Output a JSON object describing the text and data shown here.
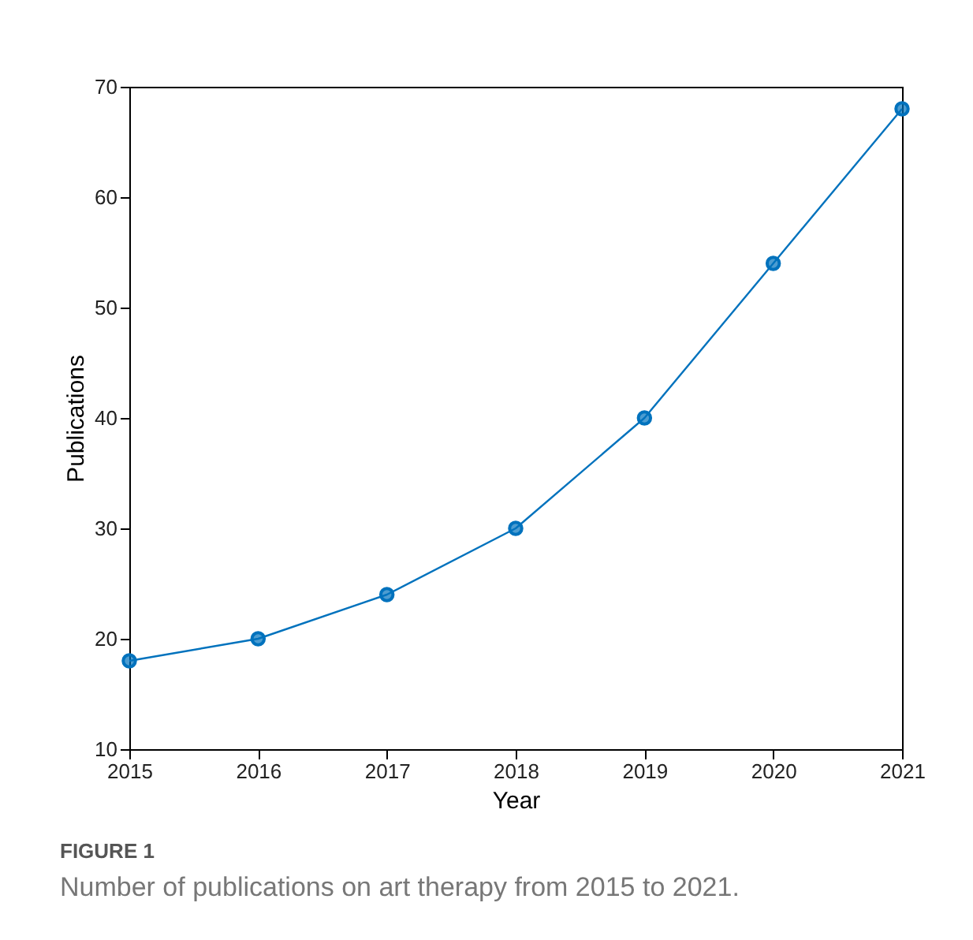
{
  "chart_data": {
    "type": "line",
    "xlabel": "Year",
    "ylabel": "Publications",
    "x": [
      2015,
      2016,
      2017,
      2018,
      2019,
      2020,
      2021
    ],
    "series": [
      {
        "color": "#0072bd",
        "values": [
          18,
          20,
          24,
          30,
          40,
          54,
          68
        ]
      }
    ],
    "xlim": [
      2015,
      2021
    ],
    "xticks": [
      2015,
      2016,
      2017,
      2018,
      2019,
      2020,
      2021
    ],
    "ylim": [
      10,
      70
    ],
    "yticks": [
      10,
      20,
      30,
      40,
      50,
      60,
      70
    ],
    "grid": false,
    "marker": "circle",
    "line_style": "solid",
    "annotations": [
      "FIGURE 1",
      "Number of publications on art therapy from 2015 to 2021."
    ]
  }
}
